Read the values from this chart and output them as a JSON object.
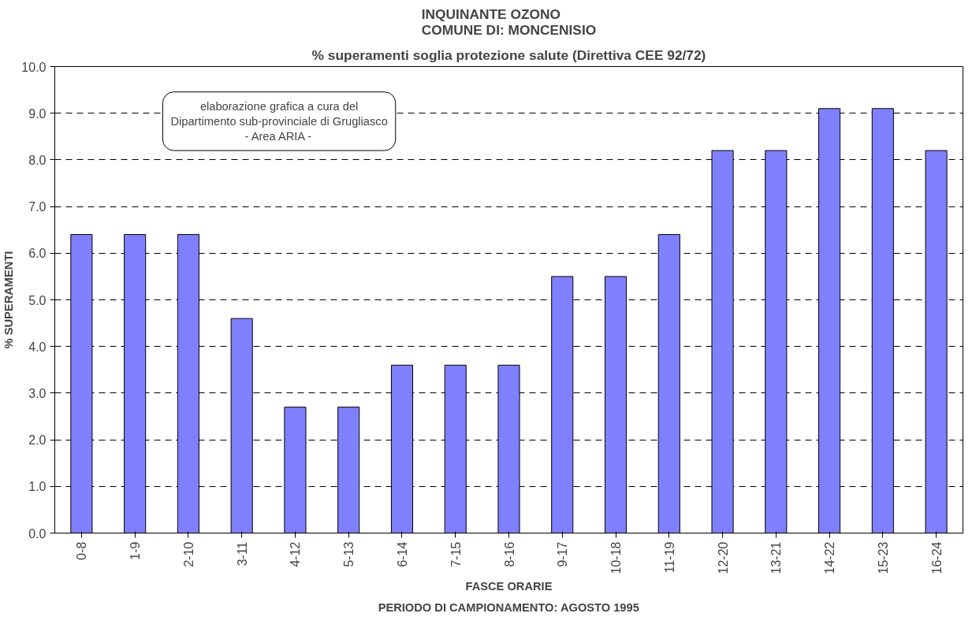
{
  "chart_data": {
    "type": "bar",
    "title": "INQUINANTE OZONO\nCOMUNE DI: MONCENISIO",
    "subtitle": "% superamenti soglia protezione salute (Direttiva CEE 92/72)",
    "xlabel": "FASCE ORARIE",
    "ylabel": "% SUPERAMENTI",
    "annotations": [
      "elaborazione grafica a cura del\nDipartimento sub-provinciale di Grugliasco\n- Area ARIA -",
      "PERIODO DI CAMPIONAMENTO: AGOSTO 1995"
    ],
    "categories": [
      "0-8",
      "1-9",
      "2-10",
      "3-11",
      "4-12",
      "5-13",
      "6-14",
      "7-15",
      "8-16",
      "9-17",
      "10-18",
      "11-19",
      "12-20",
      "13-21",
      "14-22",
      "15-23",
      "16-24"
    ],
    "values": [
      6.4,
      6.4,
      6.4,
      4.6,
      2.7,
      2.7,
      3.6,
      3.6,
      3.6,
      5.5,
      5.5,
      6.4,
      8.2,
      8.2,
      9.1,
      9.1,
      8.2
    ],
    "color": "#8080ff",
    "ylim": [
      0,
      10
    ],
    "yticks": [
      {
        "value": 0,
        "label": "0.0"
      },
      {
        "value": 1,
        "label": "1.0"
      },
      {
        "value": 2,
        "label": "2.0"
      },
      {
        "value": 3,
        "label": "3.0"
      },
      {
        "value": 4,
        "label": "4.0"
      },
      {
        "value": 5,
        "label": "5.0"
      },
      {
        "value": 6,
        "label": "6.0"
      },
      {
        "value": 7,
        "label": "7.0"
      },
      {
        "value": 8,
        "label": "8.0"
      },
      {
        "value": 9,
        "label": "9.0"
      },
      {
        "value": 10,
        "label": "10.0"
      }
    ],
    "grid": "y"
  }
}
